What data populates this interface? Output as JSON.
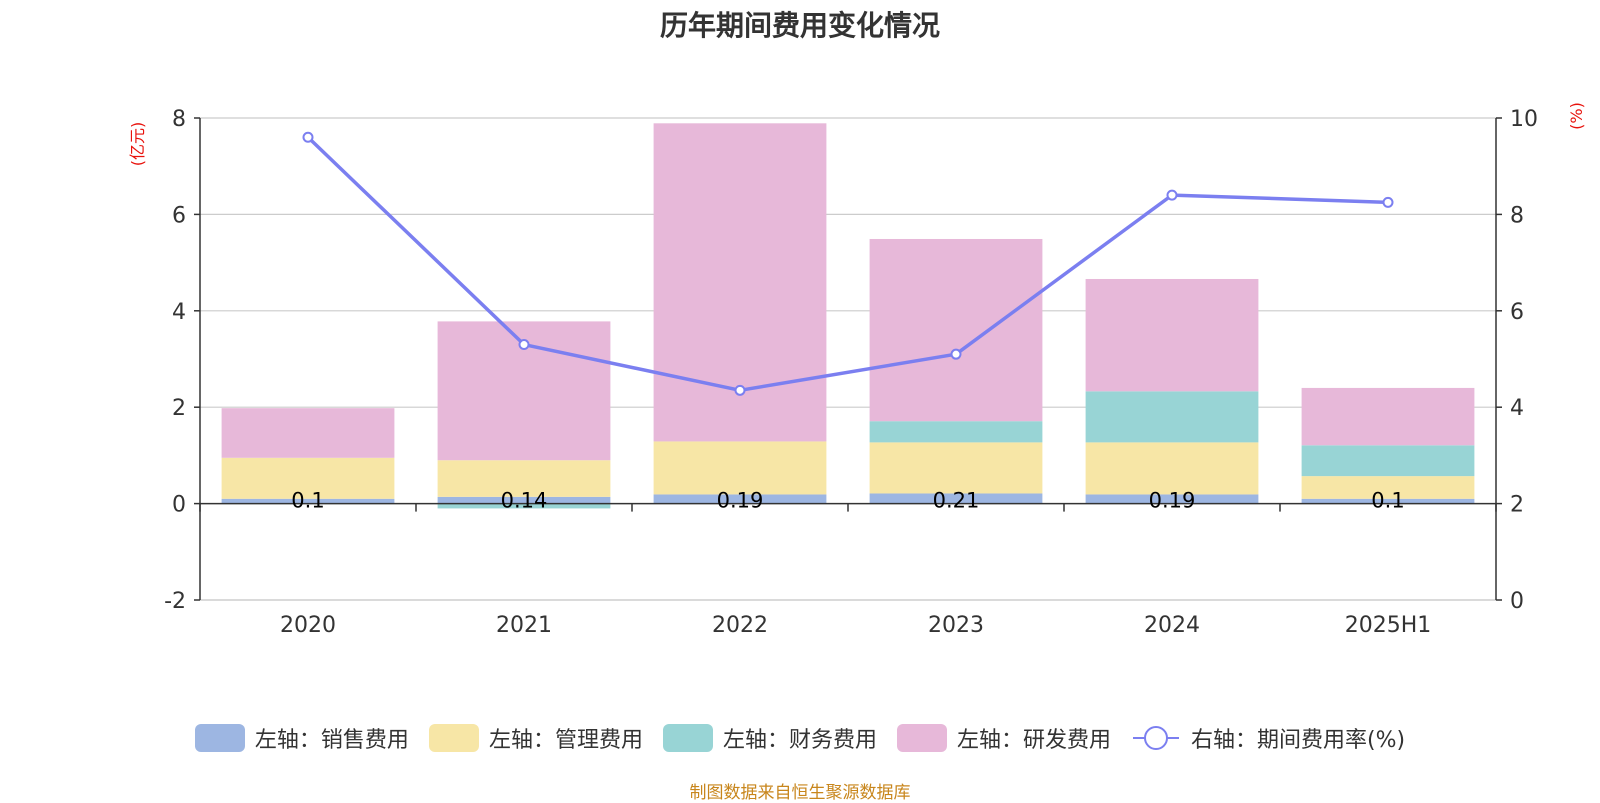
{
  "chart_data": {
    "type": "bar",
    "stacked": true,
    "title": "历年期间费用变化情况",
    "categories": [
      "2020",
      "2021",
      "2022",
      "2023",
      "2024",
      "2025H1"
    ],
    "left_axis": {
      "unit_label": "(亿元)",
      "ylim": [
        -2,
        8
      ],
      "ticks": [
        "8",
        "6",
        "4",
        "2",
        "0",
        "-2"
      ]
    },
    "right_axis": {
      "unit_label": "(%)",
      "ylim": [
        0,
        10
      ],
      "ticks": [
        "10",
        "8",
        "6",
        "4",
        "2",
        "0"
      ]
    },
    "series": [
      {
        "name": "左轴：销售费用",
        "type": "bar",
        "axis": "left",
        "color": "#9db6e2",
        "values": [
          0.1,
          0.14,
          0.19,
          0.21,
          0.19,
          0.1
        ],
        "data_labels": [
          "0.1",
          "0.14",
          "0.19",
          "0.21",
          "0.19",
          "0.1"
        ]
      },
      {
        "name": "左轴：管理费用",
        "type": "bar",
        "axis": "left",
        "color": "#f7e6a6",
        "values": [
          0.85,
          0.76,
          1.1,
          1.06,
          1.08,
          0.47
        ]
      },
      {
        "name": "左轴：财务费用",
        "type": "bar",
        "axis": "left",
        "color": "#98d4d5",
        "values": [
          -0.01,
          -0.1,
          0.0,
          0.44,
          1.06,
          0.64
        ]
      },
      {
        "name": "左轴：研发费用",
        "type": "bar",
        "axis": "left",
        "color": "#e7b8d9",
        "values": [
          1.03,
          2.88,
          6.6,
          3.78,
          2.33,
          1.19
        ]
      },
      {
        "name": "右轴：期间费用率(%)",
        "type": "line",
        "axis": "right",
        "color": "#7b7ff0",
        "values": [
          9.6,
          5.3,
          4.35,
          5.1,
          8.4,
          8.25
        ]
      }
    ],
    "grid": true,
    "legend_position": "bottom"
  },
  "footer": {
    "source": "制图数据来自恒生聚源数据库"
  }
}
